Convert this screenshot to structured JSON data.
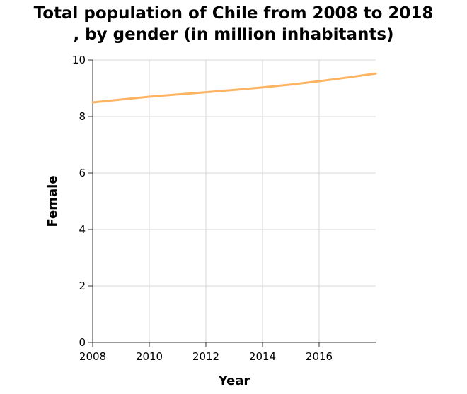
{
  "chart_data": {
    "type": "line",
    "title_lines": [
      "Total population of Chile from 2008 to 2018",
      ", by gender (in million inhabitants)"
    ],
    "xlabel": "Year",
    "ylabel": "Female",
    "x_ticks": [
      "2008",
      "2010",
      "2012",
      "2014",
      "2016"
    ],
    "y_ticks": [
      "0",
      "2",
      "4",
      "6",
      "8",
      "10"
    ],
    "xlim": [
      2008,
      2018
    ],
    "ylim": [
      0,
      10
    ],
    "grid": true,
    "series_color": "#fdb462",
    "series": [
      {
        "x": [
          2008,
          2009,
          2010,
          2011,
          2012,
          2013,
          2014,
          2015,
          2016,
          2017,
          2018
        ],
        "values": [
          8.5,
          8.6,
          8.7,
          8.78,
          8.86,
          8.94,
          9.03,
          9.13,
          9.25,
          9.38,
          9.52
        ]
      }
    ]
  }
}
